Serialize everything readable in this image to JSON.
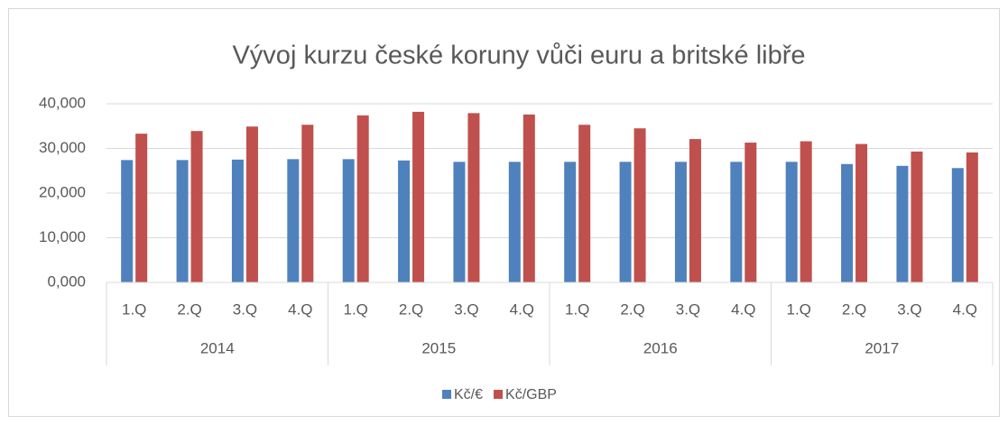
{
  "chart_data": {
    "type": "bar",
    "title": "Vývoj kurzu české koruny vůči euru a britské libře",
    "categories": [
      "1.Q",
      "2.Q",
      "3.Q",
      "4.Q",
      "1.Q",
      "2.Q",
      "3.Q",
      "4.Q",
      "1.Q",
      "2.Q",
      "3.Q",
      "4.Q",
      "1.Q",
      "2.Q",
      "3.Q",
      "4.Q"
    ],
    "category_groups": [
      "2014",
      "2015",
      "2016",
      "2017"
    ],
    "series": [
      {
        "name": "Kč/€",
        "color": "#4f81bd",
        "values": [
          27.4,
          27.4,
          27.5,
          27.6,
          27.6,
          27.3,
          27.0,
          27.0,
          27.0,
          27.0,
          27.0,
          27.0,
          27.0,
          26.5,
          26.1,
          25.6
        ]
      },
      {
        "name": "Kč/GBP",
        "color": "#c0504d",
        "values": [
          33.3,
          33.9,
          34.9,
          35.3,
          37.4,
          38.2,
          37.9,
          37.6,
          35.3,
          34.5,
          32.1,
          31.3,
          31.6,
          31.0,
          29.3,
          29.1
        ]
      }
    ],
    "ylim": [
      0,
      40
    ],
    "yticks": [
      {
        "value": 0,
        "label": "0,000"
      },
      {
        "value": 10,
        "label": "10,000"
      },
      {
        "value": 20,
        "label": "20,000"
      },
      {
        "value": 30,
        "label": "30,000"
      },
      {
        "value": 40,
        "label": "40,000"
      }
    ],
    "grid": true,
    "legend": "bottom"
  }
}
